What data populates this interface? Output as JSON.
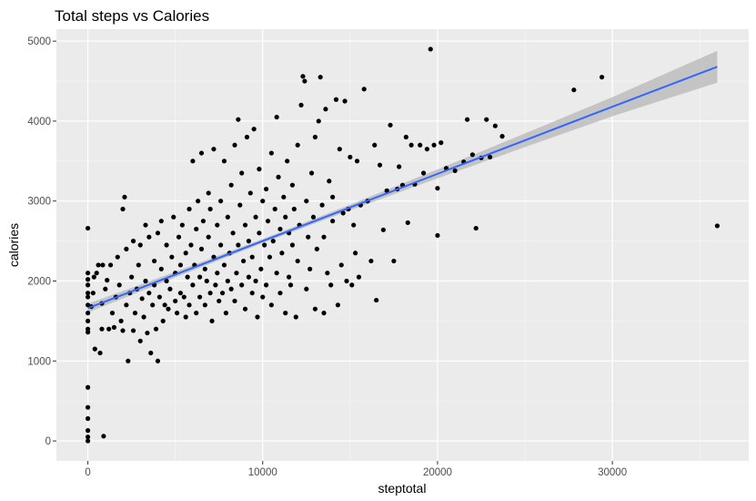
{
  "chart_data": {
    "type": "scatter",
    "title": "Total steps vs Calories",
    "xlabel": "steptotal",
    "ylabel": "calories",
    "xlim": [
      -1800,
      37800
    ],
    "ylim": [
      -250,
      5150
    ],
    "x_ticks": [
      0,
      10000,
      20000,
      30000
    ],
    "y_ticks": [
      0,
      1000,
      2000,
      3000,
      4000,
      5000
    ],
    "x_tick_labels": [
      "0",
      "10000",
      "20000",
      "30000"
    ],
    "y_tick_labels": [
      "0",
      "1000",
      "2000",
      "3000",
      "4000",
      "5000"
    ],
    "grid": true,
    "legend": "none",
    "point_color": "#000000",
    "trend": {
      "method": "linear",
      "color": "#3366ff",
      "band_color": "#bdbdbd",
      "x": [
        0,
        5000,
        10000,
        15000,
        20000,
        25000,
        30000,
        36000
      ],
      "y": [
        1660,
        2080,
        2500,
        2920,
        3340,
        3760,
        4180,
        4680
      ],
      "band_halfwidth": [
        55,
        35,
        25,
        35,
        55,
        85,
        120,
        200
      ]
    },
    "points": [
      [
        0,
        0
      ],
      [
        0,
        50
      ],
      [
        0,
        130
      ],
      [
        0,
        280
      ],
      [
        0,
        420
      ],
      [
        0,
        670
      ],
      [
        0,
        1360
      ],
      [
        0,
        1400
      ],
      [
        0,
        1500
      ],
      [
        0,
        1600
      ],
      [
        0,
        1700
      ],
      [
        0,
        1800
      ],
      [
        0,
        1850
      ],
      [
        0,
        1950
      ],
      [
        0,
        2020
      ],
      [
        0,
        2100
      ],
      [
        0,
        2660
      ],
      [
        200,
        1680
      ],
      [
        300,
        1850
      ],
      [
        350,
        2050
      ],
      [
        400,
        1150
      ],
      [
        500,
        2100
      ],
      [
        600,
        2200
      ],
      [
        700,
        1100
      ],
      [
        800,
        1720
      ],
      [
        800,
        1400
      ],
      [
        850,
        2200
      ],
      [
        900,
        60
      ],
      [
        1000,
        1900
      ],
      [
        1100,
        2010
      ],
      [
        1200,
        1400
      ],
      [
        1300,
        2200
      ],
      [
        1400,
        1600
      ],
      [
        1500,
        1420
      ],
      [
        1600,
        1800
      ],
      [
        1700,
        2300
      ],
      [
        1800,
        1950
      ],
      [
        1900,
        1500
      ],
      [
        2000,
        1380
      ],
      [
        2000,
        2900
      ],
      [
        2100,
        3050
      ],
      [
        2200,
        2400
      ],
      [
        2200,
        1700
      ],
      [
        2300,
        1000
      ],
      [
        2400,
        1850
      ],
      [
        2500,
        2050
      ],
      [
        2600,
        1380
      ],
      [
        2600,
        2500
      ],
      [
        2700,
        1600
      ],
      [
        2800,
        1900
      ],
      [
        2900,
        2200
      ],
      [
        3000,
        1250
      ],
      [
        3000,
        2450
      ],
      [
        3100,
        1780
      ],
      [
        3200,
        1550
      ],
      [
        3300,
        2000
      ],
      [
        3300,
        2700
      ],
      [
        3400,
        1350
      ],
      [
        3500,
        1850
      ],
      [
        3500,
        2550
      ],
      [
        3600,
        1100
      ],
      [
        3700,
        1700
      ],
      [
        3800,
        2250
      ],
      [
        3800,
        1950
      ],
      [
        3900,
        1400
      ],
      [
        4000,
        2600
      ],
      [
        4000,
        1000
      ],
      [
        4100,
        1800
      ],
      [
        4200,
        2150
      ],
      [
        4200,
        2750
      ],
      [
        4300,
        1500
      ],
      [
        4400,
        1700
      ],
      [
        4500,
        2450
      ],
      [
        4500,
        2000
      ],
      [
        4600,
        1650
      ],
      [
        4700,
        1900
      ],
      [
        4800,
        2300
      ],
      [
        4900,
        2800
      ],
      [
        5000,
        1750
      ],
      [
        5000,
        2100
      ],
      [
        5100,
        1600
      ],
      [
        5200,
        2550
      ],
      [
        5300,
        1850
      ],
      [
        5300,
        2200
      ],
      [
        5400,
        2700
      ],
      [
        5500,
        1800
      ],
      [
        5600,
        2350
      ],
      [
        5600,
        1550
      ],
      [
        5700,
        2050
      ],
      [
        5800,
        2900
      ],
      [
        5800,
        1700
      ],
      [
        5900,
        2450
      ],
      [
        6000,
        3500
      ],
      [
        6000,
        1950
      ],
      [
        6100,
        2200
      ],
      [
        6200,
        2650
      ],
      [
        6200,
        1600
      ],
      [
        6300,
        3000
      ],
      [
        6400,
        2050
      ],
      [
        6400,
        1800
      ],
      [
        6500,
        2400
      ],
      [
        6500,
        3600
      ],
      [
        6600,
        2750
      ],
      [
        6700,
        1700
      ],
      [
        6700,
        2150
      ],
      [
        6800,
        2000
      ],
      [
        6900,
        2550
      ],
      [
        6900,
        3100
      ],
      [
        7000,
        1850
      ],
      [
        7000,
        2900
      ],
      [
        7100,
        1500
      ],
      [
        7200,
        2300
      ],
      [
        7200,
        3650
      ],
      [
        7300,
        1950
      ],
      [
        7400,
        2700
      ],
      [
        7400,
        2100
      ],
      [
        7500,
        1750
      ],
      [
        7600,
        3000
      ],
      [
        7600,
        2450
      ],
      [
        7700,
        1850
      ],
      [
        7800,
        2200
      ],
      [
        7800,
        3500
      ],
      [
        7900,
        1600
      ],
      [
        8000,
        2800
      ],
      [
        8000,
        2000
      ],
      [
        8100,
        2350
      ],
      [
        8200,
        3200
      ],
      [
        8200,
        1900
      ],
      [
        8300,
        2600
      ],
      [
        8400,
        1750
      ],
      [
        8400,
        3700
      ],
      [
        8500,
        2100
      ],
      [
        8600,
        4020
      ],
      [
        8600,
        2450
      ],
      [
        8700,
        2950
      ],
      [
        8800,
        1950
      ],
      [
        8800,
        3350
      ],
      [
        8900,
        2250
      ],
      [
        9000,
        1650
      ],
      [
        9000,
        2700
      ],
      [
        9100,
        3800
      ],
      [
        9200,
        2050
      ],
      [
        9200,
        2500
      ],
      [
        9300,
        3100
      ],
      [
        9400,
        1850
      ],
      [
        9400,
        2300
      ],
      [
        9500,
        3900
      ],
      [
        9600,
        2800
      ],
      [
        9600,
        2000
      ],
      [
        9700,
        1550
      ],
      [
        9800,
        2600
      ],
      [
        9800,
        3400
      ],
      [
        9900,
        2150
      ],
      [
        10000,
        1800
      ],
      [
        10000,
        3000
      ],
      [
        10100,
        2450
      ],
      [
        10200,
        3150
      ],
      [
        10200,
        1950
      ],
      [
        10300,
        2750
      ],
      [
        10400,
        2300
      ],
      [
        10500,
        3600
      ],
      [
        10500,
        1700
      ],
      [
        10600,
        2500
      ],
      [
        10700,
        2900
      ],
      [
        10800,
        2100
      ],
      [
        10800,
        4050
      ],
      [
        10900,
        3300
      ],
      [
        11000,
        1850
      ],
      [
        11000,
        2650
      ],
      [
        11100,
        2350
      ],
      [
        11200,
        3050
      ],
      [
        11300,
        1600
      ],
      [
        11300,
        2800
      ],
      [
        11400,
        3500
      ],
      [
        11500,
        2050
      ],
      [
        11500,
        2600
      ],
      [
        11600,
        1950
      ],
      [
        11700,
        3200
      ],
      [
        11700,
        2450
      ],
      [
        11800,
        2900
      ],
      [
        11900,
        1550
      ],
      [
        12000,
        2250
      ],
      [
        12000,
        3700
      ],
      [
        12100,
        2700
      ],
      [
        12200,
        4200
      ],
      [
        12300,
        4560
      ],
      [
        12400,
        4500
      ],
      [
        12500,
        1900
      ],
      [
        12500,
        3000
      ],
      [
        12600,
        2550
      ],
      [
        12700,
        2150
      ],
      [
        12800,
        3350
      ],
      [
        12900,
        2800
      ],
      [
        13000,
        1650
      ],
      [
        13000,
        3800
      ],
      [
        13100,
        2400
      ],
      [
        13200,
        4000
      ],
      [
        13300,
        4550
      ],
      [
        13400,
        2950
      ],
      [
        13500,
        1600
      ],
      [
        13500,
        2550
      ],
      [
        13600,
        4150
      ],
      [
        13700,
        2100
      ],
      [
        13800,
        3250
      ],
      [
        13900,
        1950
      ],
      [
        14000,
        2750
      ],
      [
        14000,
        3050
      ],
      [
        14200,
        4270
      ],
      [
        14300,
        1700
      ],
      [
        14400,
        3650
      ],
      [
        14500,
        2200
      ],
      [
        14600,
        2850
      ],
      [
        14700,
        4250
      ],
      [
        14800,
        2000
      ],
      [
        14900,
        2900
      ],
      [
        15000,
        3550
      ],
      [
        15100,
        1950
      ],
      [
        15200,
        2700
      ],
      [
        15300,
        2350
      ],
      [
        15400,
        3500
      ],
      [
        15500,
        2050
      ],
      [
        15600,
        2950
      ],
      [
        15800,
        4400
      ],
      [
        16000,
        3000
      ],
      [
        16200,
        2250
      ],
      [
        16400,
        3700
      ],
      [
        16500,
        1760
      ],
      [
        16700,
        3450
      ],
      [
        16900,
        2640
      ],
      [
        17100,
        3130
      ],
      [
        17300,
        3950
      ],
      [
        17500,
        2250
      ],
      [
        17700,
        3150
      ],
      [
        17800,
        3430
      ],
      [
        18000,
        3200
      ],
      [
        18200,
        3800
      ],
      [
        18300,
        2730
      ],
      [
        18500,
        3700
      ],
      [
        18700,
        3210
      ],
      [
        19000,
        3700
      ],
      [
        19200,
        3350
      ],
      [
        19400,
        3650
      ],
      [
        19600,
        4900
      ],
      [
        19800,
        3700
      ],
      [
        20000,
        3160
      ],
      [
        20000,
        2570
      ],
      [
        20200,
        3730
      ],
      [
        20500,
        3410
      ],
      [
        21000,
        3380
      ],
      [
        21500,
        3490
      ],
      [
        21700,
        4020
      ],
      [
        22000,
        3580
      ],
      [
        22200,
        2660
      ],
      [
        22500,
        3540
      ],
      [
        22800,
        4020
      ],
      [
        23000,
        3550
      ],
      [
        23300,
        3940
      ],
      [
        23700,
        3810
      ],
      [
        27800,
        4390
      ],
      [
        29400,
        4550
      ],
      [
        36000,
        2690
      ]
    ]
  }
}
